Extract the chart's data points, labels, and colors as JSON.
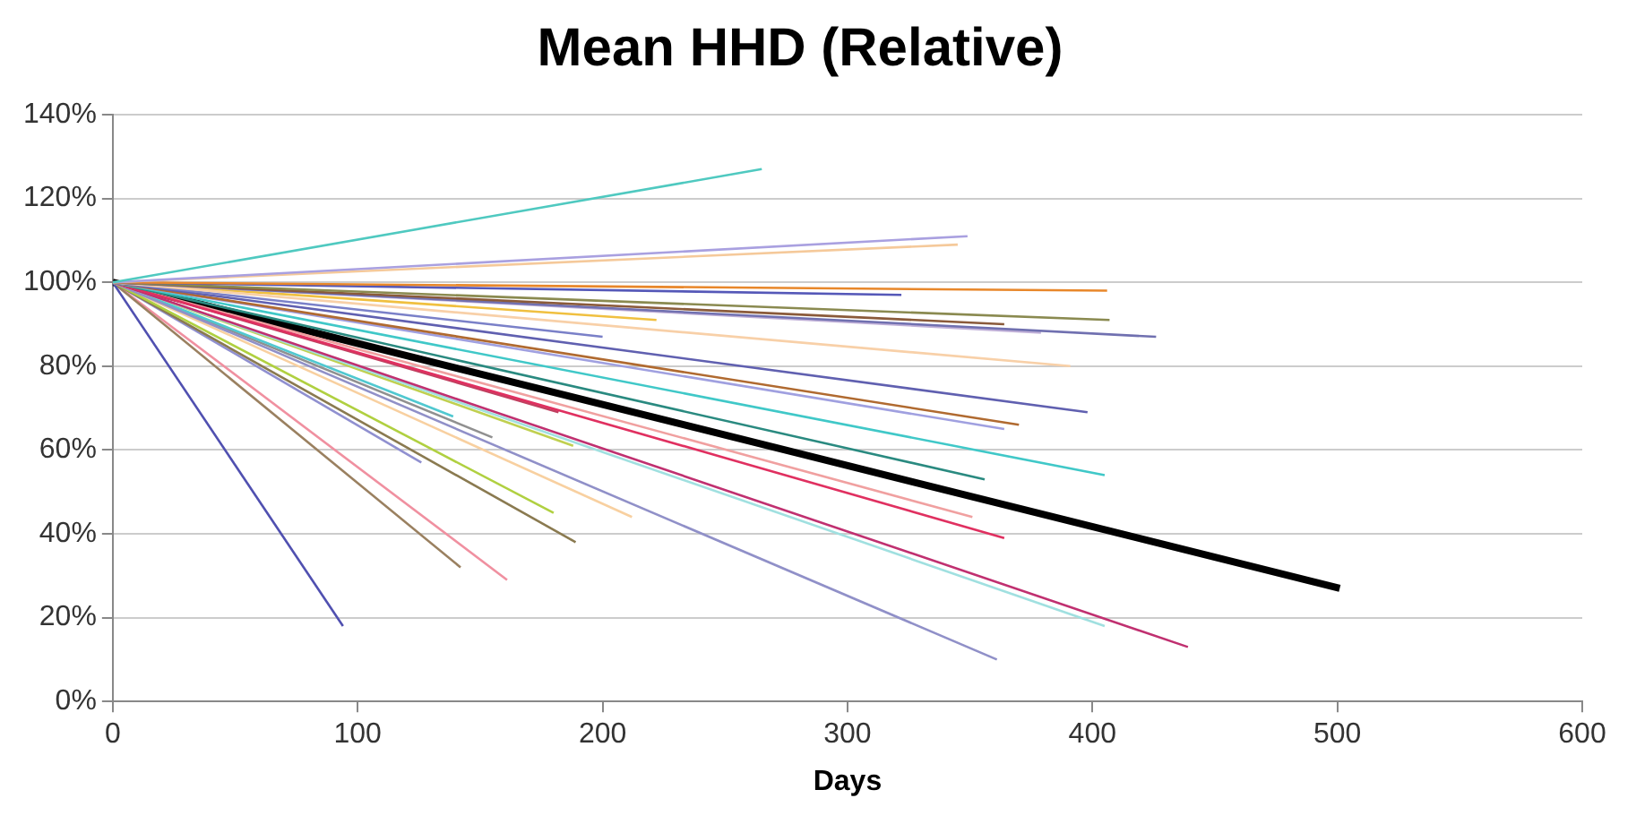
{
  "chart_data": {
    "type": "line",
    "title": "Mean HHD (Relative)",
    "xlabel": "Days",
    "xlim": [
      0,
      600
    ],
    "xticks": [
      0,
      100,
      200,
      300,
      400,
      500,
      600
    ],
    "ylim": [
      0,
      140
    ],
    "yticks": [
      {
        "value": 0,
        "label": "0%"
      },
      {
        "value": 20,
        "label": "20%"
      },
      {
        "value": 40,
        "label": "40%"
      },
      {
        "value": 60,
        "label": "60%"
      },
      {
        "value": 80,
        "label": "80%"
      },
      {
        "value": 100,
        "label": "100%"
      },
      {
        "value": 120,
        "label": "120%"
      },
      {
        "value": 140,
        "label": "140%"
      }
    ],
    "grid": "y",
    "legend": false,
    "marker": "none",
    "line_style": "solid",
    "series": [
      {
        "color": "#4fc9c0",
        "x": [
          0,
          265
        ],
        "values": [
          100,
          127
        ]
      },
      {
        "color": "#a9a0e0",
        "x": [
          0,
          349
        ],
        "values": [
          100,
          111
        ]
      },
      {
        "color": "#f5c99a",
        "x": [
          0,
          345
        ],
        "values": [
          100,
          109
        ]
      },
      {
        "color": "#e8872a",
        "x": [
          0,
          406
        ],
        "values": [
          100,
          98
        ]
      },
      {
        "color": "#5558b8",
        "x": [
          0,
          322
        ],
        "values": [
          100,
          97
        ]
      },
      {
        "color": "#8a8a50",
        "x": [
          0,
          407
        ],
        "values": [
          100,
          91
        ]
      },
      {
        "color": "#8a5a3a",
        "x": [
          0,
          364
        ],
        "values": [
          100,
          90
        ]
      },
      {
        "color": "#7070b0",
        "x": [
          0,
          426
        ],
        "values": [
          100,
          87
        ]
      },
      {
        "color": "#c0b0d8",
        "x": [
          0,
          379
        ],
        "values": [
          100,
          88
        ]
      },
      {
        "color": "#f8d0a8",
        "x": [
          0,
          391
        ],
        "values": [
          100,
          80
        ]
      },
      {
        "color": "#7a80c8",
        "x": [
          0,
          200
        ],
        "values": [
          100,
          87
        ]
      },
      {
        "color": "#f0c040",
        "x": [
          0,
          222
        ],
        "values": [
          100,
          91
        ]
      },
      {
        "color": "#6060b0",
        "x": [
          0,
          398
        ],
        "values": [
          100,
          69
        ]
      },
      {
        "color": "#b06a30",
        "x": [
          0,
          370
        ],
        "values": [
          100,
          66
        ]
      },
      {
        "color": "#a0a0e0",
        "x": [
          0,
          364
        ],
        "values": [
          100,
          65
        ]
      },
      {
        "color": "#40c8c8",
        "x": [
          0,
          405
        ],
        "values": [
          100,
          54
        ]
      },
      {
        "color": "#2a8a80",
        "x": [
          0,
          356
        ],
        "values": [
          100,
          53
        ]
      },
      {
        "color": "#e03060",
        "x": [
          0,
          364
        ],
        "values": [
          100,
          39
        ]
      },
      {
        "color": "#f0a0a0",
        "x": [
          0,
          351
        ],
        "values": [
          100,
          44
        ]
      },
      {
        "color": "#c03070",
        "x": [
          0,
          439
        ],
        "values": [
          100,
          13
        ]
      },
      {
        "color": "#a0e0e0",
        "x": [
          0,
          405
        ],
        "values": [
          100,
          18
        ]
      },
      {
        "color": "#9090c8",
        "x": [
          0,
          361
        ],
        "values": [
          100,
          10
        ]
      },
      {
        "color": "#b0d040",
        "x": [
          0,
          180
        ],
        "values": [
          100,
          45
        ]
      },
      {
        "color": "#8a7a50",
        "x": [
          0,
          189
        ],
        "values": [
          100,
          38
        ]
      },
      {
        "color": "#f8d0a0",
        "x": [
          0,
          212
        ],
        "values": [
          100,
          44
        ]
      },
      {
        "color": "#5050b0",
        "x": [
          0,
          94
        ],
        "values": [
          100,
          18
        ]
      },
      {
        "color": "#9a8060",
        "x": [
          0,
          142
        ],
        "values": [
          100,
          32
        ]
      },
      {
        "color": "#f090a0",
        "x": [
          0,
          161
        ],
        "values": [
          100,
          29
        ]
      },
      {
        "color": "#9090d0",
        "x": [
          0,
          126
        ],
        "values": [
          100,
          57
        ]
      },
      {
        "color": "#50c8d0",
        "x": [
          0,
          139
        ],
        "values": [
          100,
          68
        ]
      },
      {
        "color": "#909090",
        "x": [
          0,
          155
        ],
        "values": [
          100,
          63
        ]
      },
      {
        "color": "#c0d050",
        "x": [
          0,
          188
        ],
        "values": [
          100,
          61
        ]
      },
      {
        "color": "#c04060",
        "x": [
          0,
          182
        ],
        "values": [
          100,
          69
        ]
      },
      {
        "color": "#000000",
        "x": [
          0,
          501
        ],
        "values": [
          100,
          27
        ]
      }
    ]
  }
}
